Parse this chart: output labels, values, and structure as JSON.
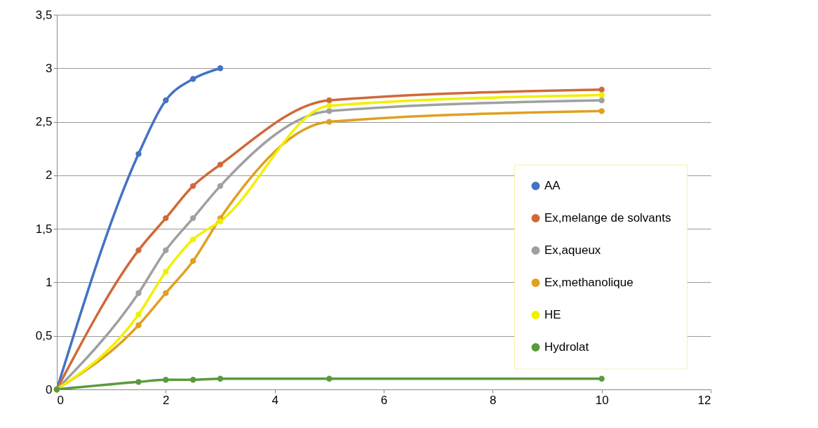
{
  "chart_data": {
    "type": "line",
    "x": [
      0,
      1.5,
      2,
      2.5,
      3,
      5,
      10
    ],
    "series": [
      {
        "name": "AA",
        "color": "#4472c4",
        "x": [
          0,
          1.5,
          2,
          2.5,
          3
        ],
        "values": [
          0,
          2.2,
          2.7,
          2.9,
          3.0
        ]
      },
      {
        "name": "Ex,melange de solvants",
        "color": "#d0693a",
        "values": [
          0,
          1.3,
          1.6,
          1.9,
          2.1,
          2.7,
          2.8
        ]
      },
      {
        "name": "Ex,aqueux",
        "color": "#a0a0a0",
        "values": [
          0,
          0.9,
          1.3,
          1.6,
          1.9,
          2.6,
          2.7
        ]
      },
      {
        "name": "Ex,methanolique",
        "color": "#e0a020",
        "values": [
          0,
          0.6,
          0.9,
          1.2,
          1.6,
          2.5,
          2.6
        ]
      },
      {
        "name": "HE",
        "color": "#f0f000",
        "values": [
          0,
          0.7,
          1.1,
          1.4,
          1.57,
          2.65,
          2.75
        ]
      },
      {
        "name": "Hydrolat",
        "color": "#5a9a3c",
        "values": [
          0,
          0.07,
          0.09,
          0.09,
          0.1,
          0.1,
          0.1
        ]
      }
    ],
    "xlim": [
      0,
      12
    ],
    "xticks": [
      0,
      2,
      4,
      6,
      8,
      10,
      12
    ],
    "ylim": [
      0,
      3.5
    ],
    "yticks": [
      0,
      {
        "value": 0.5,
        "label": "0,5"
      },
      1,
      {
        "value": 1.5,
        "label": "1,5"
      },
      2,
      {
        "value": 2.5,
        "label": "2,5"
      },
      3,
      {
        "value": 3.5,
        "label": "3,5"
      }
    ],
    "grid": "y",
    "legend": "right",
    "marker": "circle",
    "line_style": "solid"
  }
}
